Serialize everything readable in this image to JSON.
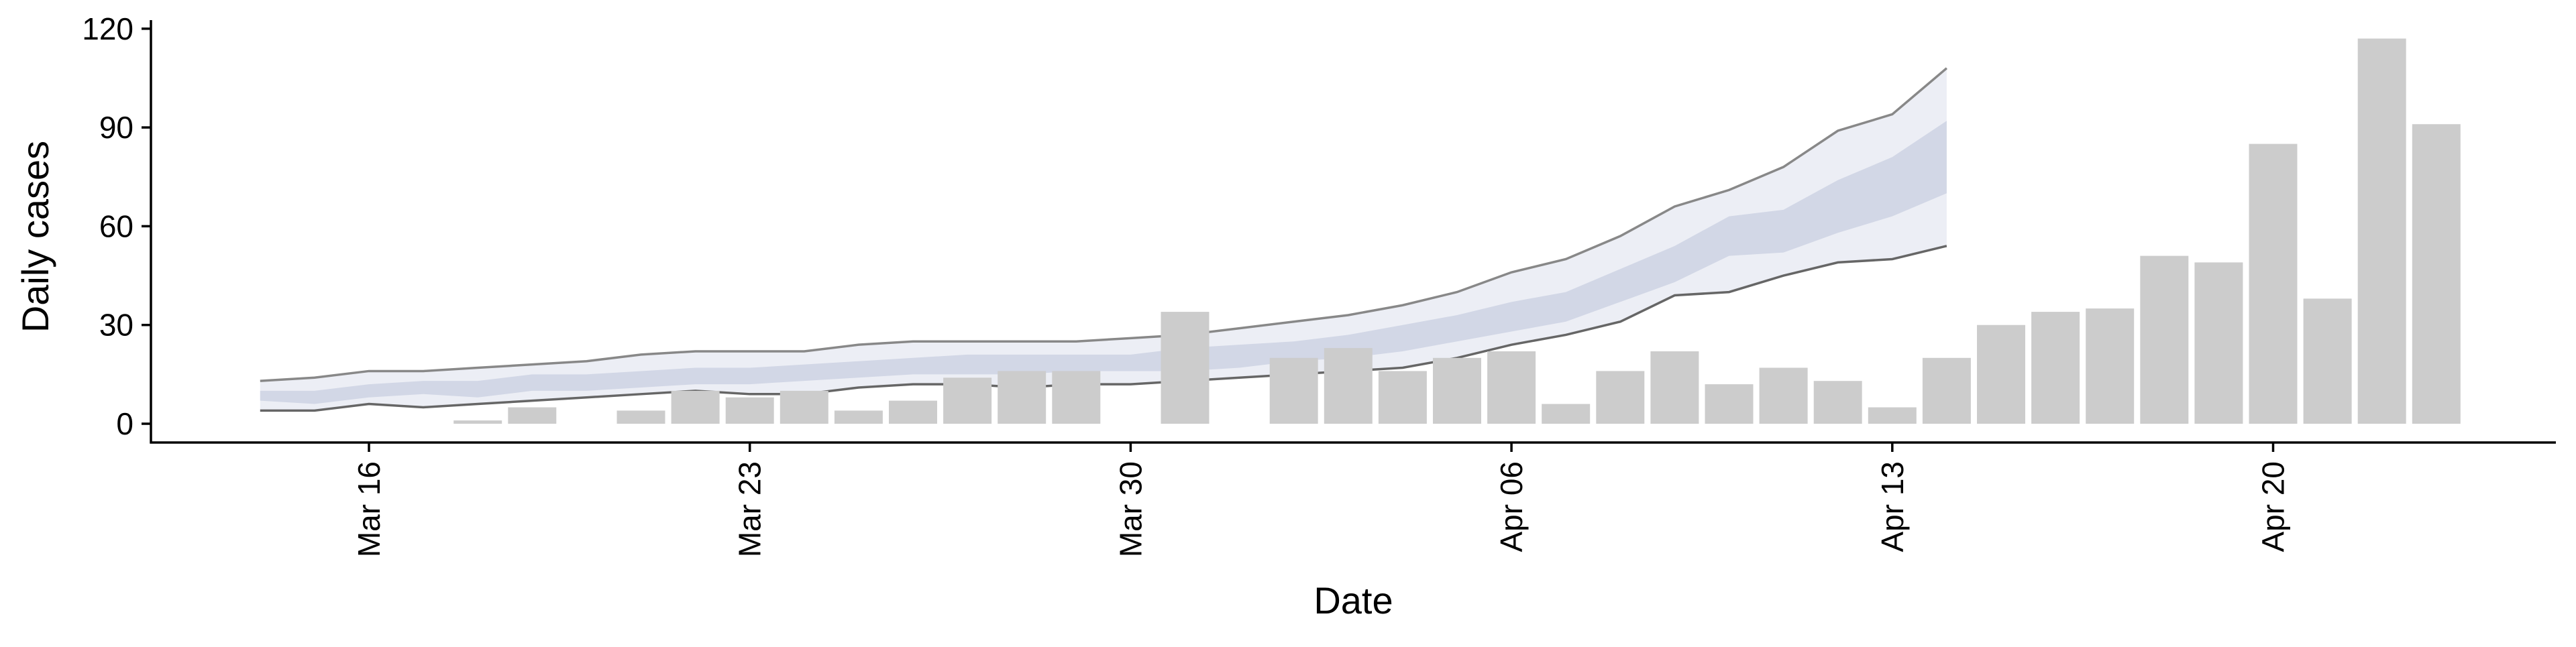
{
  "chart_data": {
    "type": "bar",
    "xlabel": "Date",
    "ylabel": "Daily cases",
    "ylim": [
      -5,
      122
    ],
    "yticks": [
      0,
      30,
      60,
      90,
      120
    ],
    "xticks": [
      {
        "date": "2020-03-16",
        "label": "Mar 16"
      },
      {
        "date": "2020-03-23",
        "label": "Mar 23"
      },
      {
        "date": "2020-03-30",
        "label": "Mar 30"
      },
      {
        "date": "2020-04-06",
        "label": "Apr 06"
      },
      {
        "date": "2020-04-13",
        "label": "Apr 13"
      },
      {
        "date": "2020-04-20",
        "label": "Apr 20"
      }
    ],
    "grid": false,
    "legend": "none",
    "bars": {
      "dates": [
        "2020-03-18",
        "2020-03-19",
        "2020-03-21",
        "2020-03-22",
        "2020-03-23",
        "2020-03-24",
        "2020-03-25",
        "2020-03-26",
        "2020-03-27",
        "2020-03-28",
        "2020-03-29",
        "2020-03-31",
        "2020-04-02",
        "2020-04-03",
        "2020-04-04",
        "2020-04-05",
        "2020-04-06",
        "2020-04-07",
        "2020-04-08",
        "2020-04-09",
        "2020-04-10",
        "2020-04-11",
        "2020-04-12",
        "2020-04-13",
        "2020-04-14",
        "2020-04-15",
        "2020-04-16",
        "2020-04-17",
        "2020-04-18",
        "2020-04-19",
        "2020-04-20",
        "2020-04-21",
        "2020-04-22",
        "2020-04-23"
      ],
      "values": [
        1,
        5,
        4,
        10,
        8,
        10,
        4,
        7,
        14,
        16,
        16,
        34,
        20,
        23,
        16,
        20,
        22,
        6,
        16,
        22,
        12,
        17,
        13,
        5,
        20,
        30,
        34,
        35,
        51,
        49,
        85,
        38,
        117,
        91
      ],
      "color": "#cccccc"
    },
    "forecast": {
      "dates": [
        "2020-03-14",
        "2020-03-15",
        "2020-03-16",
        "2020-03-17",
        "2020-03-18",
        "2020-03-19",
        "2020-03-20",
        "2020-03-21",
        "2020-03-22",
        "2020-03-23",
        "2020-03-24",
        "2020-03-25",
        "2020-03-26",
        "2020-03-27",
        "2020-03-28",
        "2020-03-29",
        "2020-03-30",
        "2020-03-31",
        "2020-04-01",
        "2020-04-02",
        "2020-04-03",
        "2020-04-04",
        "2020-04-05",
        "2020-04-06",
        "2020-04-07",
        "2020-04-08",
        "2020-04-09",
        "2020-04-10",
        "2020-04-11",
        "2020-04-12",
        "2020-04-13",
        "2020-04-14"
      ],
      "outer_upper": [
        13,
        14,
        16,
        16,
        17,
        18,
        19,
        21,
        22,
        22,
        22,
        24,
        25,
        25,
        25,
        25,
        26,
        27,
        29,
        31,
        33,
        36,
        40,
        46,
        50,
        57,
        66,
        71,
        78,
        89,
        94,
        108
      ],
      "outer_lower": [
        4,
        4,
        6,
        5,
        6,
        7,
        8,
        9,
        10,
        9,
        9,
        11,
        12,
        12,
        11,
        12,
        12,
        13,
        14,
        15,
        16,
        17,
        20,
        24,
        27,
        31,
        39,
        40,
        45,
        49,
        50,
        54
      ],
      "inner_upper": [
        10,
        10,
        12,
        13,
        13,
        15,
        15,
        16,
        17,
        17,
        18,
        19,
        20,
        21,
        21,
        21,
        21,
        23,
        24,
        25,
        27,
        30,
        33,
        37,
        40,
        47,
        54,
        63,
        65,
        74,
        81,
        92
      ],
      "inner_lower": [
        7,
        6,
        8,
        9,
        8,
        10,
        10,
        11,
        12,
        12,
        13,
        14,
        15,
        15,
        15,
        16,
        16,
        16,
        17,
        19,
        20,
        22,
        25,
        28,
        31,
        37,
        43,
        51,
        52,
        58,
        63,
        70
      ],
      "outer_fill": "#eceef5",
      "inner_fill": "#d2d7e6",
      "upper_line_color": "#888888",
      "lower_line_color": "#666666"
    }
  }
}
